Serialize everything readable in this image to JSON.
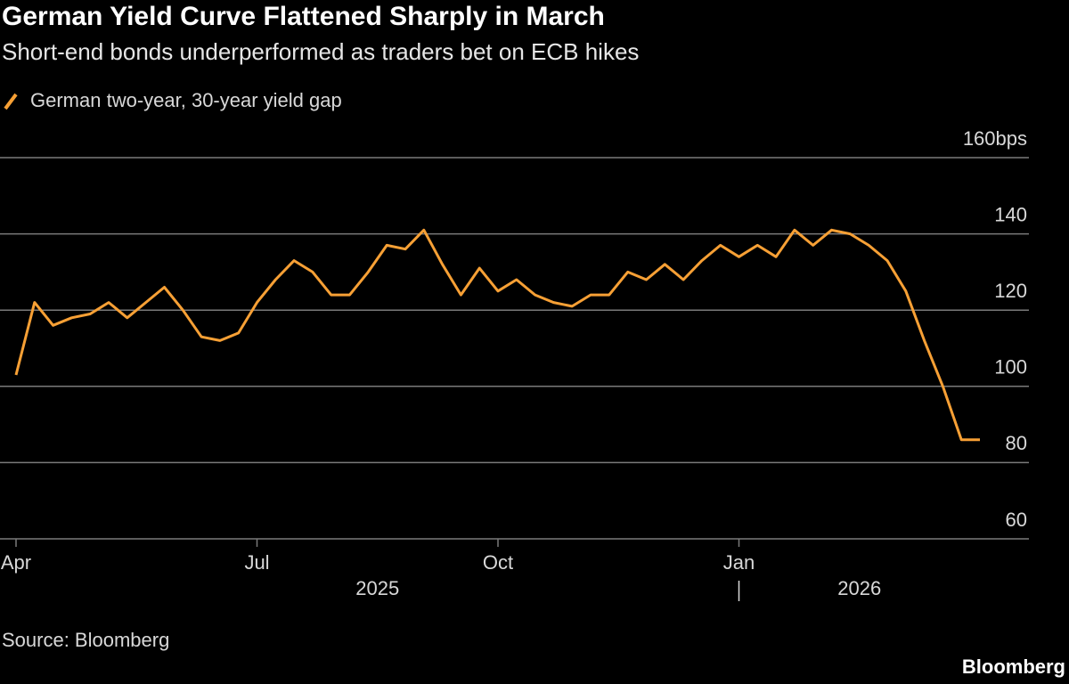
{
  "chart_data": {
    "type": "line",
    "title": "German Yield Curve Flattened Sharply in March",
    "subtitle": "Short-end bonds underperformed as traders bet on ECB hikes",
    "categories": [
      "Apr",
      null,
      null,
      null,
      null,
      null,
      null,
      null,
      null,
      null,
      null,
      null,
      null,
      "Jul",
      null,
      null,
      null,
      null,
      null,
      null,
      null,
      null,
      null,
      null,
      null,
      null,
      "Oct",
      null,
      null,
      null,
      null,
      null,
      null,
      null,
      null,
      null,
      null,
      null,
      null,
      "Jan",
      null,
      null,
      null,
      null,
      null,
      null,
      null,
      null,
      null,
      null,
      null,
      null,
      null
    ],
    "x_groups": [
      {
        "label": "2025",
        "from": 0
      },
      {
        "label": "2026",
        "from": 39
      }
    ],
    "series": [
      {
        "name": "German two-year, 30-year yield gap",
        "color": "#f7a035",
        "values": [
          103,
          122,
          116,
          118,
          119,
          122,
          118,
          122,
          126,
          120,
          113,
          112,
          114,
          122,
          128,
          133,
          130,
          124,
          124,
          130,
          137,
          136,
          141,
          132,
          124,
          131,
          125,
          128,
          124,
          122,
          121,
          124,
          124,
          130,
          128,
          132,
          128,
          133,
          137,
          134,
          137,
          134,
          141,
          137,
          141,
          140,
          137,
          133,
          125,
          112,
          100,
          86,
          86
        ]
      }
    ],
    "ylim": [
      60,
      160
    ],
    "yticks": [
      60,
      80,
      100,
      120,
      140,
      {
        "value": 160,
        "label": "160bps"
      }
    ],
    "grid": true,
    "source": "Source: Bloomberg",
    "brand": "Bloomberg"
  }
}
